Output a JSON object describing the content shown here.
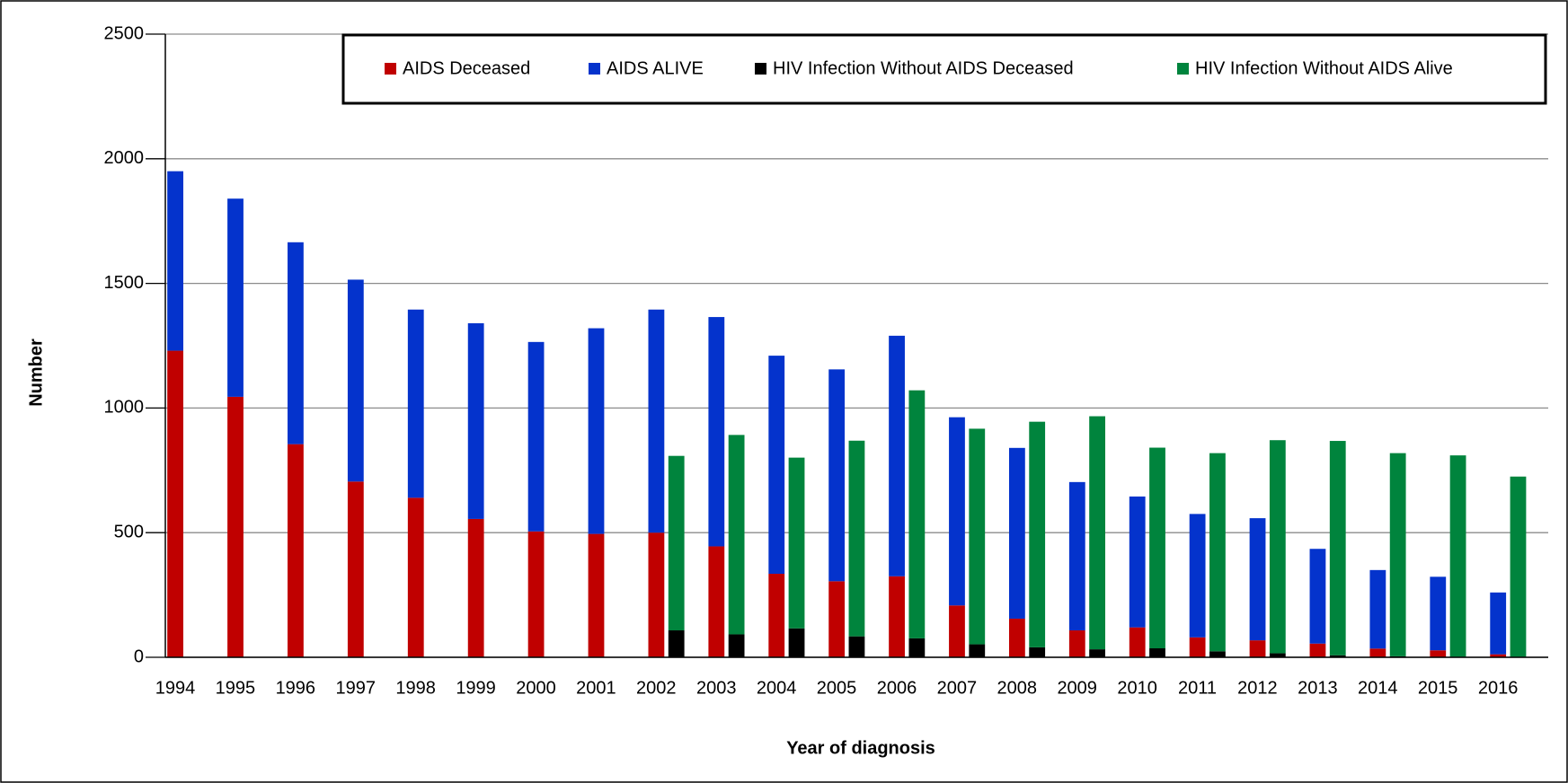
{
  "chart_data": {
    "type": "grouped-stacked-bar",
    "x_label": "Year of diagnosis",
    "y_label": "Number",
    "categories": [
      "1994",
      "1995",
      "1996",
      "1997",
      "1998",
      "1999",
      "2000",
      "2001",
      "2002",
      "2003",
      "2004",
      "2005",
      "2006",
      "2007",
      "2008",
      "2009",
      "2010",
      "2011",
      "2012",
      "2013",
      "2014",
      "2015",
      "2016"
    ],
    "series": [
      {
        "name": "AIDS Deceased",
        "color": "#c00000",
        "values": [
          1230,
          1045,
          855,
          705,
          640,
          555,
          505,
          495,
          500,
          445,
          335,
          305,
          325,
          208,
          155,
          108,
          120,
          80,
          68,
          55,
          35,
          28,
          12
        ]
      },
      {
        "name": "AIDS ALIVE",
        "color": "#0433cc",
        "values": [
          720,
          795,
          810,
          810,
          755,
          785,
          760,
          825,
          895,
          920,
          875,
          850,
          965,
          755,
          685,
          595,
          525,
          495,
          490,
          380,
          315,
          295,
          248
        ]
      },
      {
        "name": "HIV Infection Without AIDS Deceased",
        "color": "#000000",
        "values": [
          null,
          null,
          null,
          null,
          null,
          null,
          null,
          null,
          108,
          92,
          116,
          84,
          76,
          52,
          40,
          32,
          36,
          24,
          16,
          8,
          4,
          2,
          2
        ]
      },
      {
        "name": "HIV Infection Without AIDS Alive",
        "color": "#00843d",
        "values": [
          null,
          null,
          null,
          null,
          null,
          null,
          null,
          null,
          700,
          800,
          685,
          785,
          995,
          865,
          905,
          935,
          805,
          795,
          855,
          860,
          815,
          808,
          723
        ]
      }
    ],
    "ylim": [
      0,
      2500
    ],
    "yticks": [
      0,
      500,
      1000,
      1500,
      2000,
      2500
    ],
    "grid": true,
    "legend": "top"
  }
}
